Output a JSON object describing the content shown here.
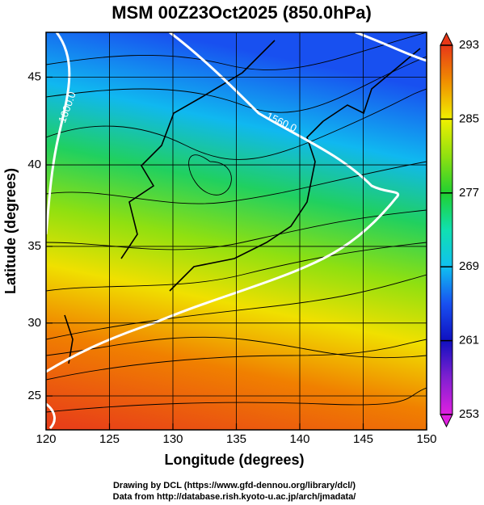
{
  "chart_data": {
    "type": "map",
    "title": "MSM 00Z23Oct2025 (850.0hPa)",
    "xlabel": "Longitude (degrees)",
    "ylabel": "Latitude  (degrees)",
    "xlim": [
      120,
      150
    ],
    "xticks": [
      120,
      125,
      130,
      135,
      140,
      145,
      150
    ],
    "ylim": [
      22.6,
      47.4
    ],
    "yticks": [
      25,
      30,
      35,
      40,
      45
    ],
    "projection": "mercator",
    "grid": true,
    "colorbar": {
      "lim": [
        253,
        293
      ],
      "ticks": [
        253,
        261,
        269,
        277,
        285,
        293
      ],
      "colors": [
        "#e020e0",
        "#8020d0",
        "#1010c0",
        "#1850f0",
        "#10c0f0",
        "#10e0b0",
        "#20d030",
        "#90e010",
        "#f0f000",
        "#f09000",
        "#e83818"
      ]
    },
    "contour_labels": [
      "1560.0",
      "1600.0"
    ],
    "footer": [
      "Drawing by DCL (https://www.gfd-dennou.org/library/dcl/)",
      "Data from http://database.rish.kyoto-u.ac.jp/arch/jmadata/"
    ]
  }
}
